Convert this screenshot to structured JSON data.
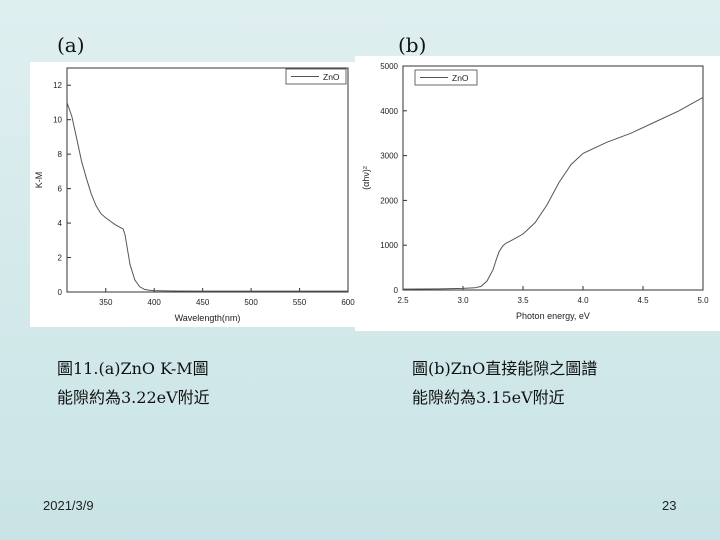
{
  "panels": [
    {
      "label": "(a)"
    },
    {
      "label": "(b)"
    }
  ],
  "captions": [
    {
      "line1": "圖11.(a)ZnO K-M圖",
      "line2": "能隙約為3.22eV附近"
    },
    {
      "line1": "圖(b)ZnO直接能隙之圖譜",
      "line2": "能隙約為3.15eV附近"
    }
  ],
  "footer": {
    "date": "2021/3/9",
    "page": "23"
  },
  "chart_data": [
    {
      "type": "line",
      "title": "",
      "xlabel": "Wavelength(nm)",
      "ylabel": "K-M",
      "xlim": [
        310,
        600
      ],
      "ylim": [
        0,
        13
      ],
      "xticks": [
        350,
        400,
        450,
        500,
        550,
        600
      ],
      "yticks": [
        0,
        2,
        4,
        6,
        8,
        10,
        12
      ],
      "legend_position": "top-right",
      "grid": false,
      "series": [
        {
          "name": "ZnO",
          "color": "#555555",
          "x": [
            310,
            315,
            320,
            325,
            330,
            335,
            340,
            345,
            350,
            355,
            360,
            365,
            368,
            370,
            372,
            375,
            380,
            385,
            390,
            395,
            400,
            420,
            450,
            500,
            550,
            600
          ],
          "y": [
            11.0,
            10.2,
            8.9,
            7.6,
            6.6,
            5.7,
            5.0,
            4.55,
            4.3,
            4.1,
            3.9,
            3.75,
            3.65,
            3.3,
            2.6,
            1.6,
            0.7,
            0.3,
            0.15,
            0.1,
            0.08,
            0.06,
            0.05,
            0.05,
            0.05,
            0.05
          ]
        }
      ]
    },
    {
      "type": "line",
      "title": "",
      "xlabel": "Photon energy, eV",
      "ylabel": "(αhν)²",
      "xlim": [
        2.5,
        5.0
      ],
      "ylim": [
        0,
        5000
      ],
      "xticks": [
        2.5,
        3.0,
        3.5,
        4.0,
        4.5,
        5.0
      ],
      "xtick_labels": [
        "2.5",
        "3.0",
        "3.5",
        "4.0",
        "4.5",
        "5.0"
      ],
      "yticks": [
        0,
        1000,
        2000,
        3000,
        4000,
        5000
      ],
      "legend_position": "top-left",
      "grid": false,
      "series": [
        {
          "name": "ZnO",
          "color": "#555555",
          "x": [
            2.5,
            2.8,
            3.0,
            3.1,
            3.15,
            3.2,
            3.25,
            3.28,
            3.3,
            3.33,
            3.36,
            3.4,
            3.5,
            3.6,
            3.7,
            3.8,
            3.9,
            4.0,
            4.2,
            4.4,
            4.6,
            4.8,
            4.9,
            5.0
          ],
          "y": [
            20,
            25,
            35,
            50,
            80,
            200,
            450,
            700,
            850,
            980,
            1050,
            1100,
            1250,
            1500,
            1900,
            2400,
            2800,
            3050,
            3300,
            3500,
            3750,
            4000,
            4150,
            4300
          ]
        }
      ]
    }
  ]
}
